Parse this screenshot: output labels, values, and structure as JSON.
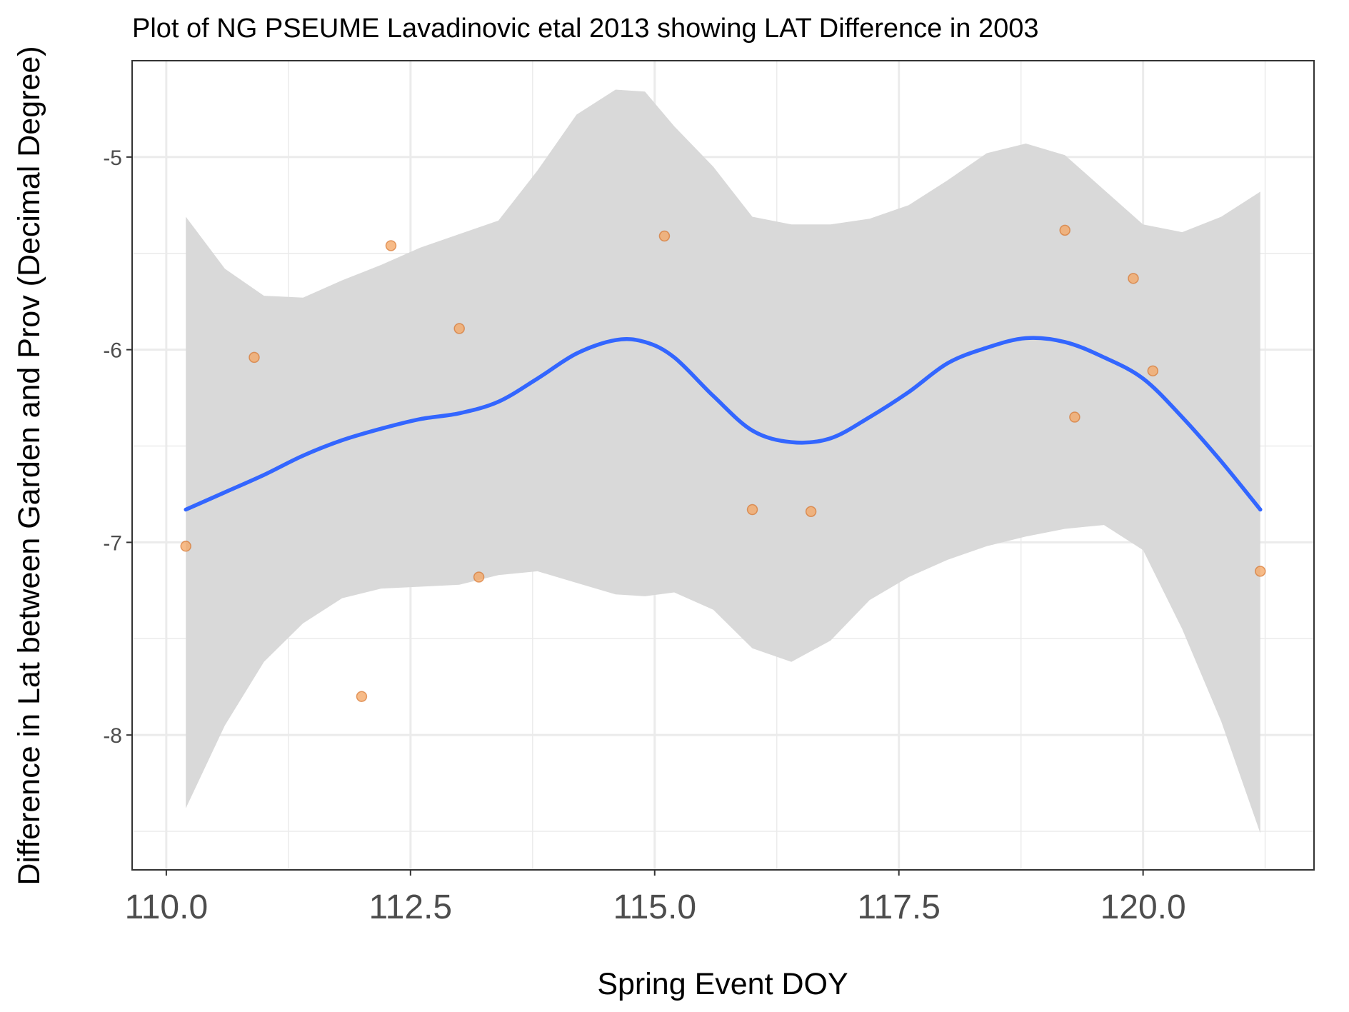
{
  "chart_data": {
    "type": "scatter",
    "title": "Plot of NG PSEUME Lavadinovic etal 2013 showing LAT Difference in 2003",
    "xlabel": "Spring Event DOY",
    "ylabel": "Difference in Lat between Garden and Prov (Decimal Degree)",
    "xlim": [
      109.65,
      121.75
    ],
    "ylim": [
      -8.7,
      -4.5
    ],
    "x_ticks": [
      110.0,
      112.5,
      115.0,
      117.5,
      120.0
    ],
    "x_tick_labels": [
      "110.0",
      "112.5",
      "115.0",
      "117.5",
      "120.0"
    ],
    "y_ticks": [
      -8,
      -7,
      -6,
      -5
    ],
    "y_tick_labels": [
      "-8",
      "-7",
      "-6",
      "-5"
    ],
    "grid": true,
    "legend": "none",
    "colors": {
      "point_fill": "#f4a460",
      "point_stroke": "#d2691e",
      "smooth_line": "#3366ff",
      "ribbon": "#d9d9d9",
      "grid": "#ebebeb",
      "panel_border": "#333333"
    },
    "points": [
      {
        "x": 110.2,
        "y": -7.02
      },
      {
        "x": 110.9,
        "y": -6.04
      },
      {
        "x": 112.0,
        "y": -7.8
      },
      {
        "x": 112.3,
        "y": -5.46
      },
      {
        "x": 113.0,
        "y": -5.89
      },
      {
        "x": 113.2,
        "y": -7.18
      },
      {
        "x": 115.1,
        "y": -5.41
      },
      {
        "x": 116.0,
        "y": -6.83
      },
      {
        "x": 116.6,
        "y": -6.84
      },
      {
        "x": 119.2,
        "y": -5.38
      },
      {
        "x": 119.3,
        "y": -6.35
      },
      {
        "x": 119.9,
        "y": -5.63
      },
      {
        "x": 120.1,
        "y": -6.11
      },
      {
        "x": 121.2,
        "y": -7.15
      }
    ],
    "smooth": {
      "method": "loess",
      "x": [
        110.2,
        110.6,
        111.0,
        111.4,
        111.8,
        112.2,
        112.6,
        113.0,
        113.4,
        113.8,
        114.2,
        114.6,
        114.9,
        115.2,
        115.6,
        116.0,
        116.4,
        116.8,
        117.2,
        117.6,
        118.0,
        118.4,
        118.8,
        119.2,
        119.6,
        120.0,
        120.4,
        120.8,
        121.2
      ],
      "y": [
        -6.83,
        -6.74,
        -6.65,
        -6.55,
        -6.47,
        -6.41,
        -6.36,
        -6.33,
        -6.27,
        -6.15,
        -6.02,
        -5.95,
        -5.96,
        -6.04,
        -6.24,
        -6.42,
        -6.48,
        -6.46,
        -6.35,
        -6.22,
        -6.07,
        -5.99,
        -5.94,
        -5.96,
        -6.04,
        -6.15,
        -6.35,
        -6.58,
        -6.83
      ],
      "ymin": [
        -8.38,
        -7.95,
        -7.62,
        -7.42,
        -7.29,
        -7.24,
        -7.23,
        -7.22,
        -7.17,
        -7.15,
        -7.21,
        -7.27,
        -7.28,
        -7.26,
        -7.35,
        -7.55,
        -7.62,
        -7.51,
        -7.3,
        -7.18,
        -7.09,
        -7.02,
        -6.97,
        -6.93,
        -6.91,
        -7.04,
        -7.45,
        -7.93,
        -8.51
      ],
      "ymax": [
        -5.31,
        -5.58,
        -5.72,
        -5.73,
        -5.64,
        -5.56,
        -5.47,
        -5.4,
        -5.33,
        -5.07,
        -4.78,
        -4.65,
        -4.66,
        -4.84,
        -5.05,
        -5.31,
        -5.35,
        -5.35,
        -5.32,
        -5.25,
        -5.12,
        -4.98,
        -4.93,
        -4.99,
        -5.17,
        -5.35,
        -5.39,
        -5.31,
        -5.18
      ]
    }
  }
}
